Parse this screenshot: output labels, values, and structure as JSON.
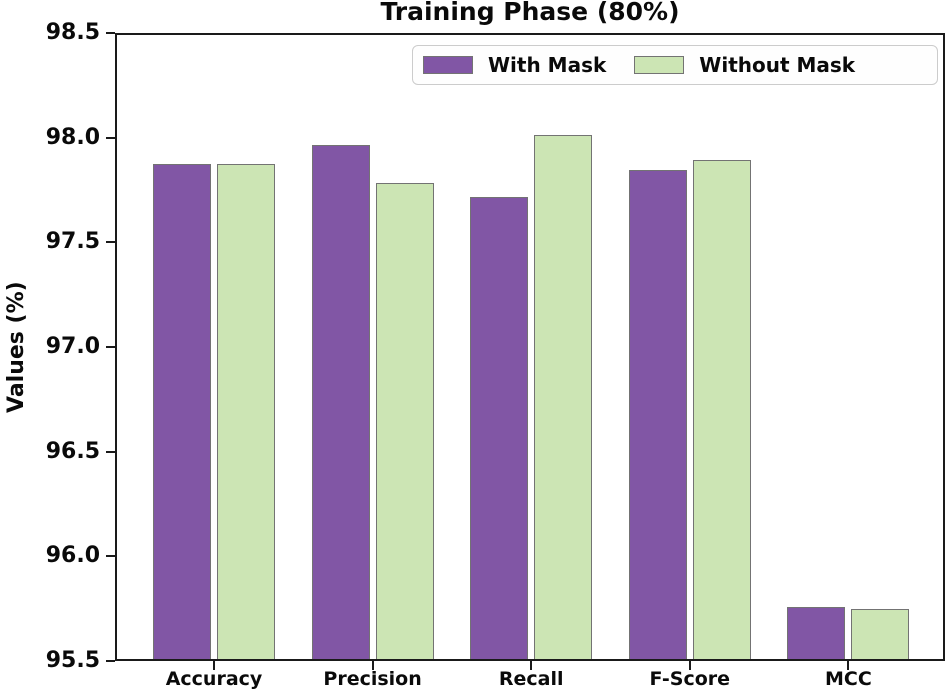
{
  "chart_data": {
    "type": "bar",
    "title": "Training Phase (80%)",
    "xlabel": "",
    "ylabel": "Values (%)",
    "categories": [
      "Accuracy",
      "Precision",
      "Recall",
      "F-Score",
      "MCC"
    ],
    "series": [
      {
        "name": "With Mask",
        "color": "#8156A5",
        "edge_color": "#737373",
        "values": [
          97.88,
          97.97,
          97.72,
          97.85,
          95.75
        ]
      },
      {
        "name": "Without Mask",
        "color": "#CCE5B4",
        "edge_color": "#737373",
        "values": [
          97.88,
          97.79,
          98.02,
          97.9,
          95.74
        ]
      }
    ],
    "ylim": [
      95.5,
      98.5
    ],
    "yticks": [
      95.5,
      96.0,
      96.5,
      97.0,
      97.5,
      98.0,
      98.5
    ],
    "ytick_labels": [
      "95.5",
      "96.0",
      "96.5",
      "97.0",
      "97.5",
      "98.0",
      "98.5"
    ],
    "grid": false,
    "legend_position": "upper right"
  }
}
